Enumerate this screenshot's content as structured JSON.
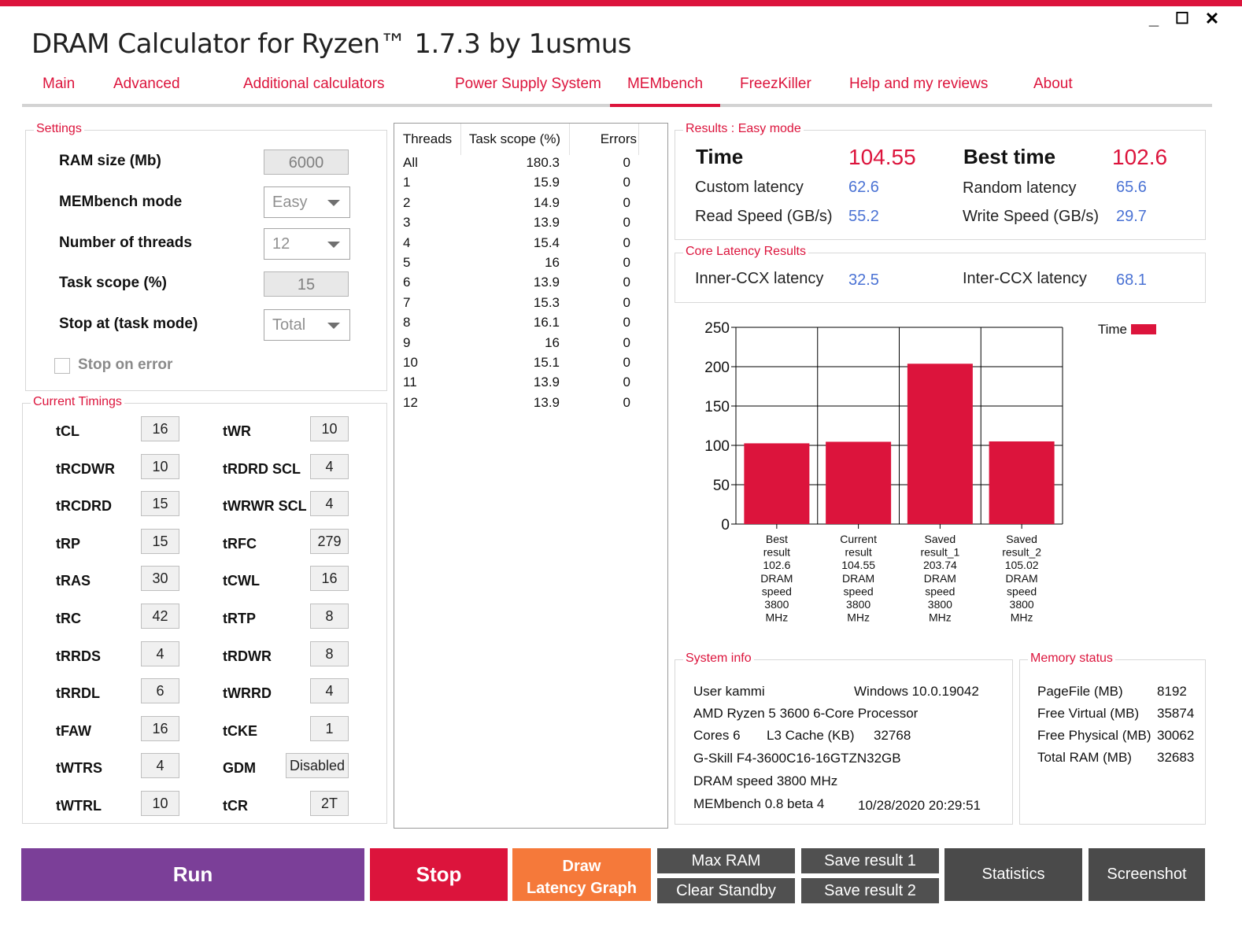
{
  "window": {
    "title": "DRAM Calculator for Ryzen™ 1.7.3 by 1usmus",
    "minimize": "_",
    "maximize": "☐",
    "close": "✕",
    "accent": "#dc143c"
  },
  "tabs": [
    {
      "label": "Main"
    },
    {
      "label": "Advanced"
    },
    {
      "label": "Additional calculators"
    },
    {
      "label": "Power Supply System"
    },
    {
      "label": "MEMbench"
    },
    {
      "label": "FreezKiller"
    },
    {
      "label": "Help and my reviews"
    },
    {
      "label": "About"
    }
  ],
  "active_tab": "MEMbench",
  "settings": {
    "group_label": "Settings",
    "ram_size_label": "RAM size (Mb)",
    "ram_size_value": "6000",
    "mode_label": "MEMbench mode",
    "mode_value": "Easy",
    "threads_label": "Number of threads",
    "threads_value": "12",
    "task_scope_label": "Task scope (%)",
    "task_scope_value": "15",
    "stop_at_label": "Stop at (task mode)",
    "stop_at_value": "Total",
    "stop_on_error_label": "Stop on error"
  },
  "timings": {
    "group_label": "Current Timings",
    "left": [
      {
        "label": "tCL",
        "value": "16"
      },
      {
        "label": "tRCDWR",
        "value": "10"
      },
      {
        "label": "tRCDRD",
        "value": "15"
      },
      {
        "label": "tRP",
        "value": "15"
      },
      {
        "label": "tRAS",
        "value": "30"
      },
      {
        "label": "tRC",
        "value": "42"
      },
      {
        "label": "tRRDS",
        "value": "4"
      },
      {
        "label": "tRRDL",
        "value": "6"
      },
      {
        "label": "tFAW",
        "value": "16"
      },
      {
        "label": "tWTRS",
        "value": "4"
      },
      {
        "label": "tWTRL",
        "value": "10"
      }
    ],
    "right": [
      {
        "label": "tWR",
        "value": "10"
      },
      {
        "label": "tRDRD SCL",
        "value": "4"
      },
      {
        "label": "tWRWR SCL",
        "value": "4"
      },
      {
        "label": "tRFC",
        "value": "279"
      },
      {
        "label": "tCWL",
        "value": "16"
      },
      {
        "label": "tRTP",
        "value": "8"
      },
      {
        "label": "tRDWR",
        "value": "8"
      },
      {
        "label": "tWRRD",
        "value": "4"
      },
      {
        "label": "tCKE",
        "value": "1"
      },
      {
        "label": "GDM",
        "value": "Disabled"
      },
      {
        "label": "tCR",
        "value": "2T"
      }
    ]
  },
  "threads_table": {
    "headers": [
      "Threads",
      "Task scope (%)",
      "Errors"
    ],
    "rows": [
      [
        "All",
        "180.3",
        "0"
      ],
      [
        "1",
        "15.9",
        "0"
      ],
      [
        "2",
        "14.9",
        "0"
      ],
      [
        "3",
        "13.9",
        "0"
      ],
      [
        "4",
        "15.4",
        "0"
      ],
      [
        "5",
        "16",
        "0"
      ],
      [
        "6",
        "13.9",
        "0"
      ],
      [
        "7",
        "15.3",
        "0"
      ],
      [
        "8",
        "16.1",
        "0"
      ],
      [
        "9",
        "16",
        "0"
      ],
      [
        "10",
        "15.1",
        "0"
      ],
      [
        "11",
        "13.9",
        "0"
      ],
      [
        "12",
        "13.9",
        "0"
      ]
    ]
  },
  "results": {
    "group_label": "Results : Easy mode",
    "time_label": "Time",
    "time_value": "104.55",
    "best_time_label": "Best time",
    "best_time_value": "102.6",
    "custom_latency_label": "Custom latency",
    "custom_latency_value": "62.6",
    "random_latency_label": "Random latency",
    "random_latency_value": "65.6",
    "read_speed_label": "Read Speed (GB/s)",
    "read_speed_value": "55.2",
    "write_speed_label": "Write Speed (GB/s)",
    "write_speed_value": "29.7"
  },
  "core_latency": {
    "group_label": "Core Latency Results",
    "inner_label": "Inner-CCX latency",
    "inner_value": "32.5",
    "inter_label": "Inter-CCX latency",
    "inter_value": "68.1"
  },
  "chart_data": {
    "type": "bar",
    "categories": [
      [
        "Best",
        "result",
        "102.6",
        "DRAM",
        "speed",
        "3800",
        "MHz"
      ],
      [
        "Current",
        "result",
        "104.55",
        "DRAM",
        "speed",
        "3800",
        "MHz"
      ],
      [
        "Saved",
        "result_1",
        "203.74",
        "DRAM",
        "speed",
        "3800",
        "MHz"
      ],
      [
        "Saved",
        "result_2",
        "105.02",
        "DRAM",
        "speed",
        "3800",
        "MHz"
      ]
    ],
    "series": [
      {
        "name": "Time",
        "values": [
          102.6,
          104.55,
          203.74,
          105.02
        ],
        "color": "#dc143c"
      }
    ],
    "yticks": [
      "0",
      "50",
      "100",
      "150",
      "200",
      "250"
    ],
    "ylim": [
      0,
      250
    ],
    "grid": true,
    "legend": "top-right"
  },
  "system_info": {
    "group_label": "System info",
    "user": "User kammi",
    "os": "Windows 10.0.19042",
    "cpu": "AMD Ryzen 5 3600 6-Core Processor",
    "cores": "Cores 6",
    "l3_label": "L3 Cache (KB)",
    "l3_value": "32768",
    "ram_model": "G-Skill F4-3600C16-16GTZN32GB",
    "dram_speed": "DRAM speed 3800 MHz",
    "membench_version": "MEMbench 0.8 beta 4",
    "datetime": "10/28/2020 20:29:51"
  },
  "memory_status": {
    "group_label": "Memory status",
    "rows": [
      {
        "label": "PageFile (MB)",
        "value": "8192"
      },
      {
        "label": "Free Virtual (MB)",
        "value": "35874"
      },
      {
        "label": "Free Physical (MB)",
        "value": "30062"
      },
      {
        "label": "Total RAM (MB)",
        "value": "32683"
      }
    ]
  },
  "buttons": {
    "run": "Run",
    "stop": "Stop",
    "draw_line1": "Draw",
    "draw_line2": "Latency Graph",
    "max_ram": "Max RAM",
    "clear_standby": "Clear Standby",
    "save_result_1": "Save result 1",
    "save_result_2": "Save result 2",
    "statistics": "Statistics",
    "screenshot": "Screenshot",
    "colors": {
      "run": "#7b3f98",
      "stop": "#dc143c",
      "draw": "#f5793a",
      "gray": "#505050",
      "dark": "#4a4a4a"
    }
  }
}
